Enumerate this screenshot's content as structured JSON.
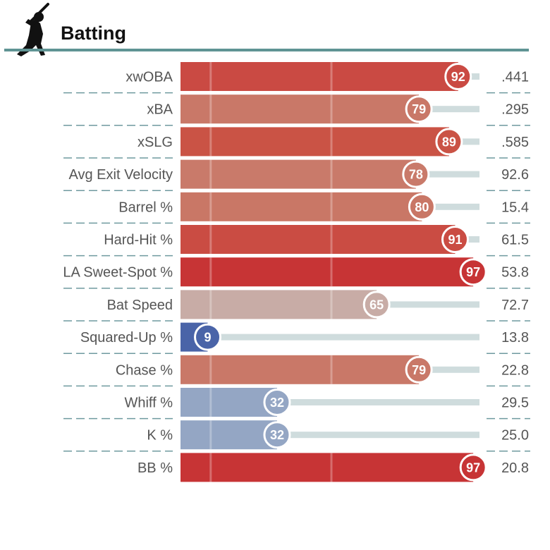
{
  "header": {
    "title": "Batting",
    "icon": "batter-silhouette-icon"
  },
  "colors": {
    "rule": "#5f9494",
    "track": "#cfdcdd",
    "divider": "#6f9a9f",
    "high": "#c73a36",
    "low": "#4a64a8"
  },
  "chart_data": {
    "type": "bar",
    "orientation": "horizontal",
    "title": "Batting",
    "xlim": [
      0,
      100
    ],
    "gridlines_at": [
      10,
      50
    ],
    "rows": [
      {
        "metric": "xwOBA",
        "percentile": 92,
        "value": ".441",
        "color": "#ca4a43"
      },
      {
        "metric": "xBA",
        "percentile": 79,
        "value": ".295",
        "color": "#c97868"
      },
      {
        "metric": "xSLG",
        "percentile": 89,
        "value": ".585",
        "color": "#ca5345"
      },
      {
        "metric": "Avg Exit Velocity",
        "percentile": 78,
        "value": "92.6",
        "color": "#c97a6a"
      },
      {
        "metric": "Barrel %",
        "percentile": 80,
        "value": "15.4",
        "color": "#c97766"
      },
      {
        "metric": "Hard-Hit %",
        "percentile": 91,
        "value": "61.5",
        "color": "#ca4c43"
      },
      {
        "metric": "LA Sweet-Spot %",
        "percentile": 97,
        "value": "53.8",
        "color": "#c73435"
      },
      {
        "metric": "Bat Speed",
        "percentile": 65,
        "value": "72.7",
        "color": "#c8aca6"
      },
      {
        "metric": "Squared-Up %",
        "percentile": 9,
        "value": "13.8",
        "color": "#4a64a8"
      },
      {
        "metric": "Chase %",
        "percentile": 79,
        "value": "22.8",
        "color": "#c97868"
      },
      {
        "metric": "Whiff %",
        "percentile": 32,
        "value": "29.5",
        "color": "#94a6c4"
      },
      {
        "metric": "K %",
        "percentile": 32,
        "value": "25.0",
        "color": "#94a6c4"
      },
      {
        "metric": "BB %",
        "percentile": 97,
        "value": "20.8",
        "color": "#c73435"
      }
    ]
  }
}
